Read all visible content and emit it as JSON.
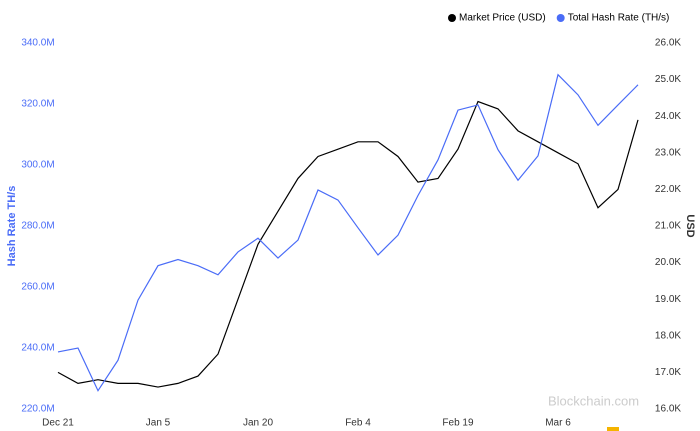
{
  "chart_data": {
    "type": "line",
    "y_label": "Hash Rate TH/s",
    "y2_label": "USD",
    "watermark": "Blockchain.com",
    "categories": [
      "Dec 21",
      null,
      null,
      null,
      null,
      "Jan 5",
      null,
      null,
      null,
      null,
      "Jan 20",
      null,
      null,
      null,
      null,
      "Feb 4",
      null,
      null,
      null,
      null,
      "Feb 19",
      null,
      null,
      null,
      null,
      "Mar 6",
      null,
      null,
      null,
      null
    ],
    "series": [
      {
        "name": "Market Price (USD)",
        "color": "#000000",
        "axis": "y2",
        "values": [
          17000,
          16700,
          16800,
          16700,
          16700,
          16600,
          16700,
          16900,
          17500,
          19000,
          20500,
          21400,
          22300,
          22900,
          23100,
          23300,
          23300,
          22900,
          22200,
          22300,
          23100,
          24400,
          24200,
          23600,
          23300,
          23000,
          22700,
          21500,
          22000,
          23900
        ]
      },
      {
        "name": "Total Hash Rate (TH/s)",
        "color": "#4a6cf7",
        "values": [
          238700000,
          240000000,
          226000000,
          236000000,
          255700000,
          267000000,
          269000000,
          267000000,
          264000000,
          271500000,
          276000000,
          269500000,
          275400000,
          291800000,
          288500000,
          279400000,
          270500000,
          277000000,
          290000000,
          301700000,
          318000000,
          319700000,
          305000000,
          295000000,
          303000000,
          329600000,
          323000000,
          313000000,
          319700000,
          326300000
        ]
      }
    ],
    "ylim": [
      220000000,
      340000000
    ],
    "yticks": [
      {
        "value": 220000000,
        "label": "220.0M"
      },
      {
        "value": 240000000,
        "label": "240.0M"
      },
      {
        "value": 260000000,
        "label": "260.0M"
      },
      {
        "value": 280000000,
        "label": "280.0M"
      },
      {
        "value": 300000000,
        "label": "300.0M"
      },
      {
        "value": 320000000,
        "label": "320.0M"
      },
      {
        "value": 340000000,
        "label": "340.0M"
      }
    ],
    "y2lim": [
      16000,
      26000
    ],
    "y2ticks": [
      {
        "value": 16000,
        "label": "16.0K"
      },
      {
        "value": 17000,
        "label": "17.0K"
      },
      {
        "value": 18000,
        "label": "18.0K"
      },
      {
        "value": 19000,
        "label": "19.0K"
      },
      {
        "value": 20000,
        "label": "20.0K"
      },
      {
        "value": 21000,
        "label": "21.0K"
      },
      {
        "value": 22000,
        "label": "22.0K"
      },
      {
        "value": 23000,
        "label": "23.0K"
      },
      {
        "value": 24000,
        "label": "24.0K"
      },
      {
        "value": 25000,
        "label": "25.0K"
      },
      {
        "value": 26000,
        "label": "26.0K"
      }
    ],
    "grid": false
  }
}
